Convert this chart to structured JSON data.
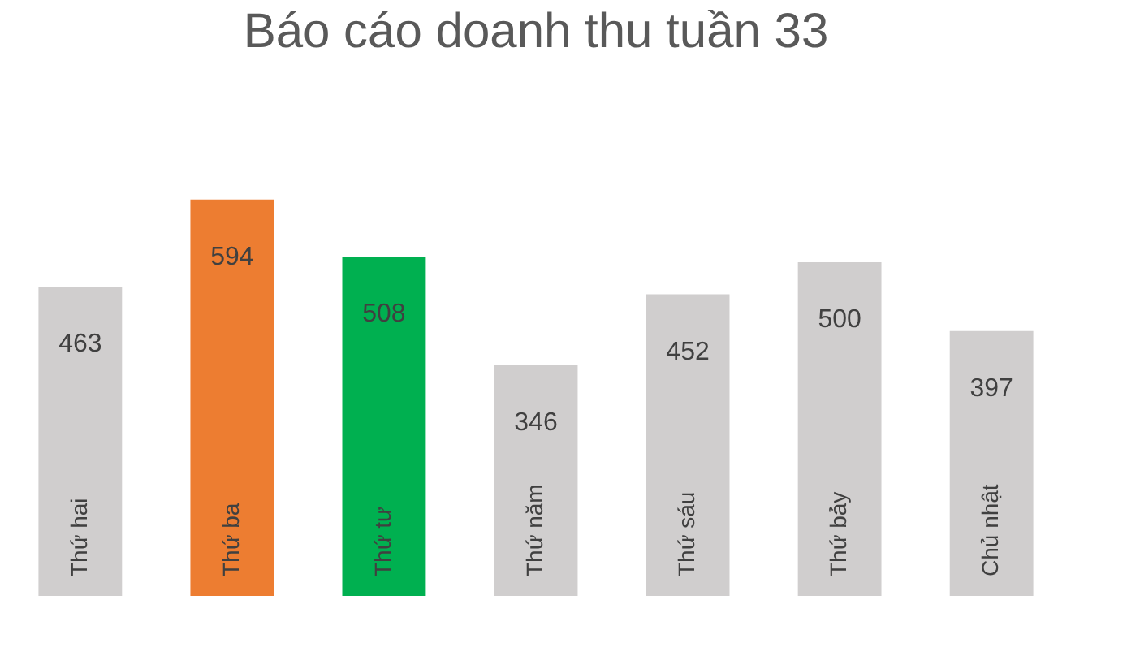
{
  "chart_data": {
    "type": "bar",
    "title": "Báo cáo doanh thu tuần 33",
    "categories": [
      "Thứ hai",
      "Thứ ba",
      "Thứ tư",
      "Thứ năm",
      "Thứ sáu",
      "Thứ bảy",
      "Chủ nhật"
    ],
    "values": [
      463,
      594,
      508,
      346,
      452,
      500,
      397
    ],
    "colors": [
      "#d0cece",
      "#ed7d31",
      "#00b050",
      "#d0cece",
      "#d0cece",
      "#d0cece",
      "#d0cece"
    ],
    "data_labels": true
  }
}
